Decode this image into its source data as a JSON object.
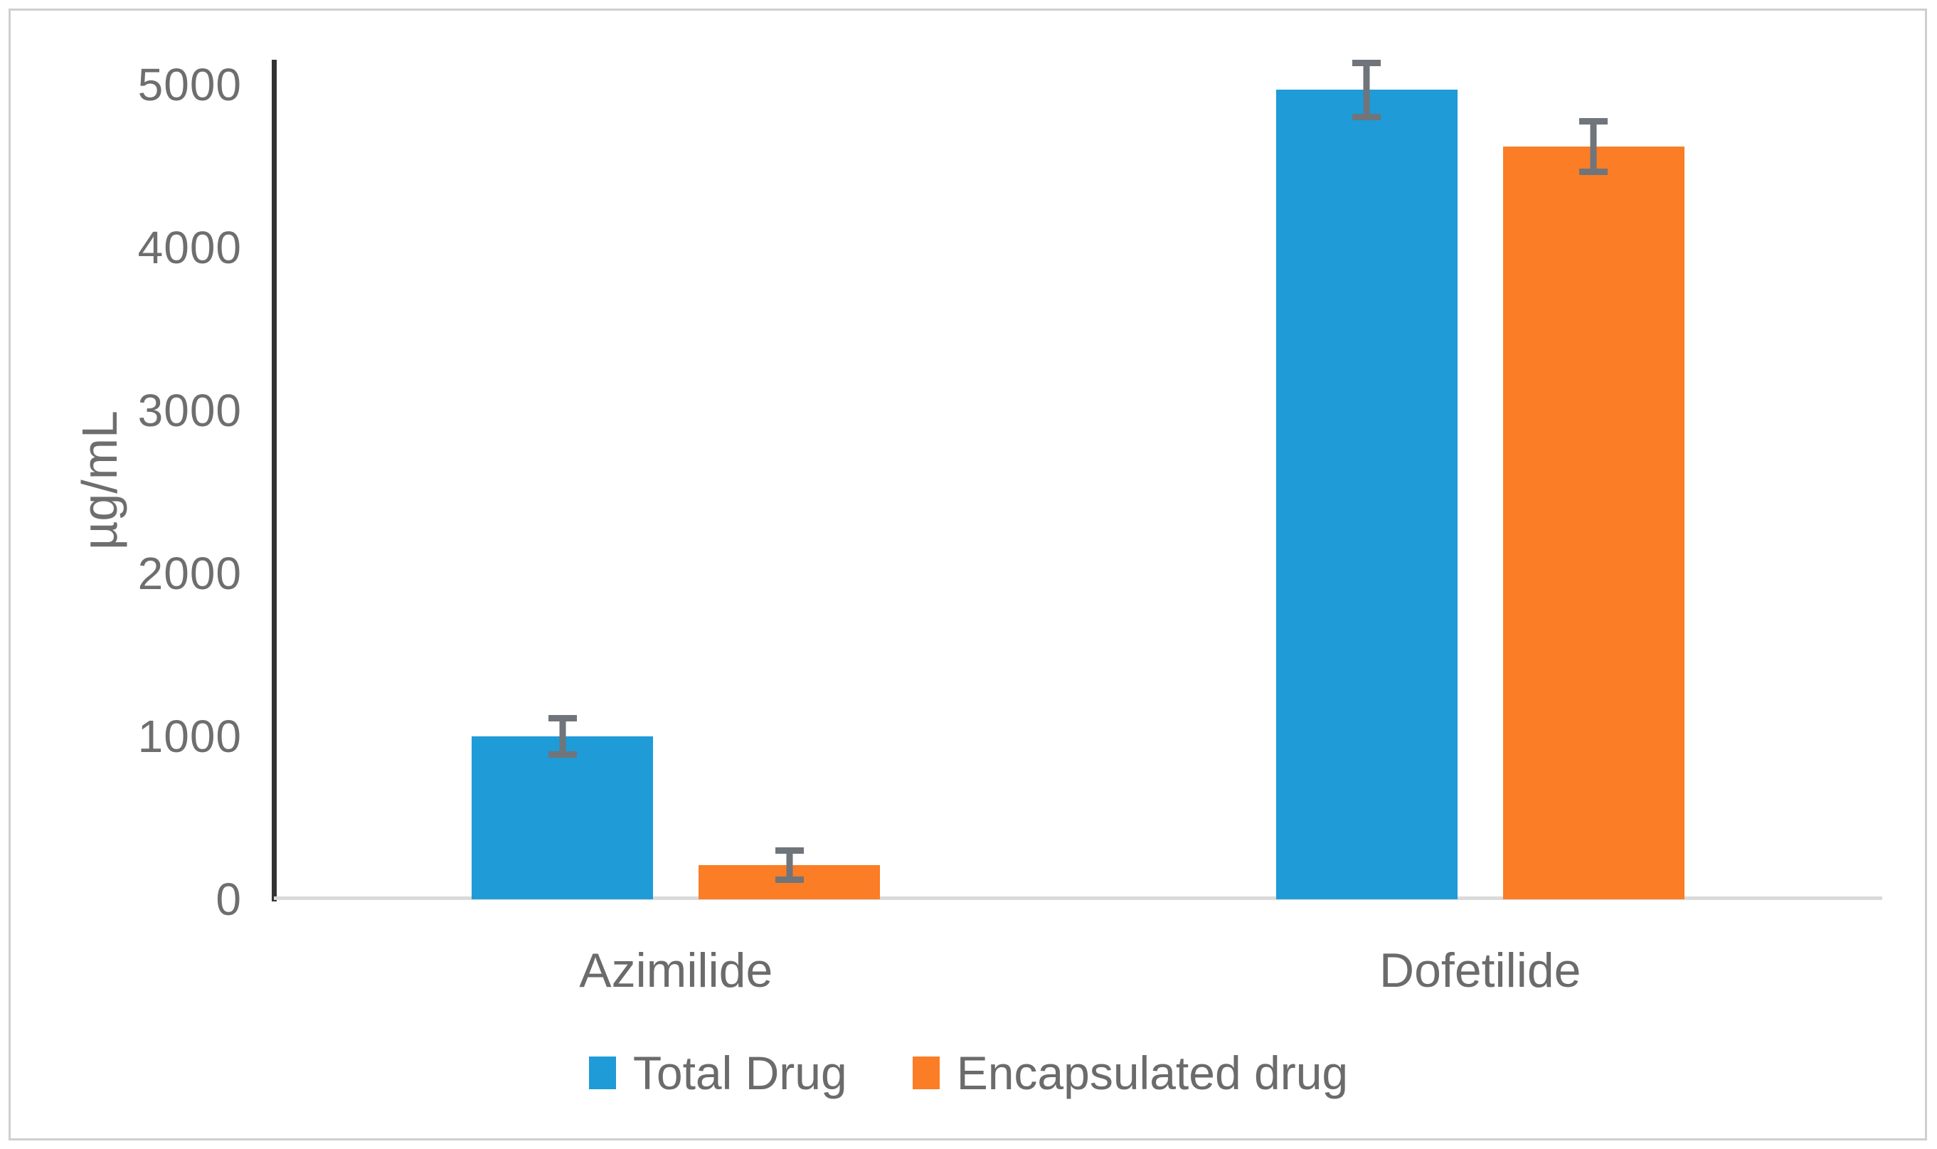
{
  "chart_data": {
    "type": "bar",
    "title": "",
    "xlabel": "",
    "ylabel": "µg/mL",
    "categories": [
      "Azimilide",
      "Dofetilide"
    ],
    "series": [
      {
        "name": "Total Drug",
        "color": "#1f9bd7",
        "values": [
          1000,
          4970
        ],
        "errors": [
          130,
          185
        ]
      },
      {
        "name": "Encapsulated drug",
        "color": "#fb7d25",
        "values": [
          210,
          4620
        ],
        "errors": [
          110,
          175
        ]
      }
    ],
    "ylim": [
      0,
      5150
    ],
    "yticks": [
      0,
      1000,
      2000,
      3000,
      4000,
      5000
    ],
    "grid": false,
    "legend_position": "bottom",
    "colors": {
      "error_bar": "#6f757a",
      "y_axis_line": "#333333",
      "x_axis_line": "#dadada",
      "tick_text": "#6e6e6e",
      "frame_border": "#cfcfcf"
    }
  }
}
